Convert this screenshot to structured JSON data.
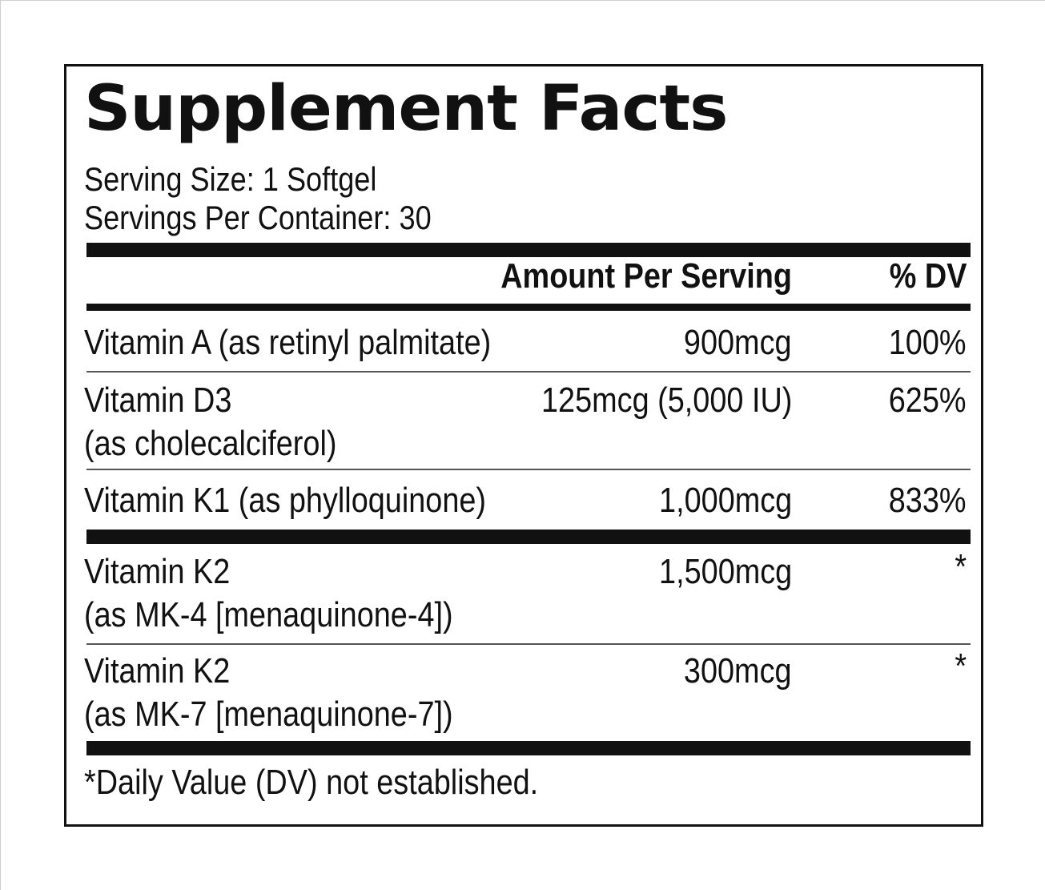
{
  "panel": {
    "title": "Supplement Facts",
    "serving_size": "Serving Size: 1 Softgel",
    "servings_per_container": "Servings Per Container: 30",
    "header": {
      "amount": "Amount Per Serving",
      "dv": "% DV"
    },
    "rows": [
      {
        "name_line1": "Vitamin A (as retinyl palmitate)",
        "name_line2": "",
        "amount": "900mcg",
        "dv": "100%"
      },
      {
        "name_line1": "Vitamin D3",
        "name_line2": "(as cholecalciferol)",
        "amount": "125mcg (5,000 IU)",
        "dv": "625%"
      },
      {
        "name_line1": "Vitamin K1 (as phylloquinone)",
        "name_line2": "",
        "amount": "1,000mcg",
        "dv": "833%"
      },
      {
        "name_line1": "Vitamin K2",
        "name_line2": "(as MK-4 [menaquinone-4])",
        "amount": "1,500mcg",
        "dv": "*"
      },
      {
        "name_line1": "Vitamin K2",
        "name_line2": "(as MK-7 [menaquinone-7])",
        "amount": "300mcg",
        "dv": "*"
      }
    ],
    "footnote": "*Daily Value (DV) not established."
  }
}
